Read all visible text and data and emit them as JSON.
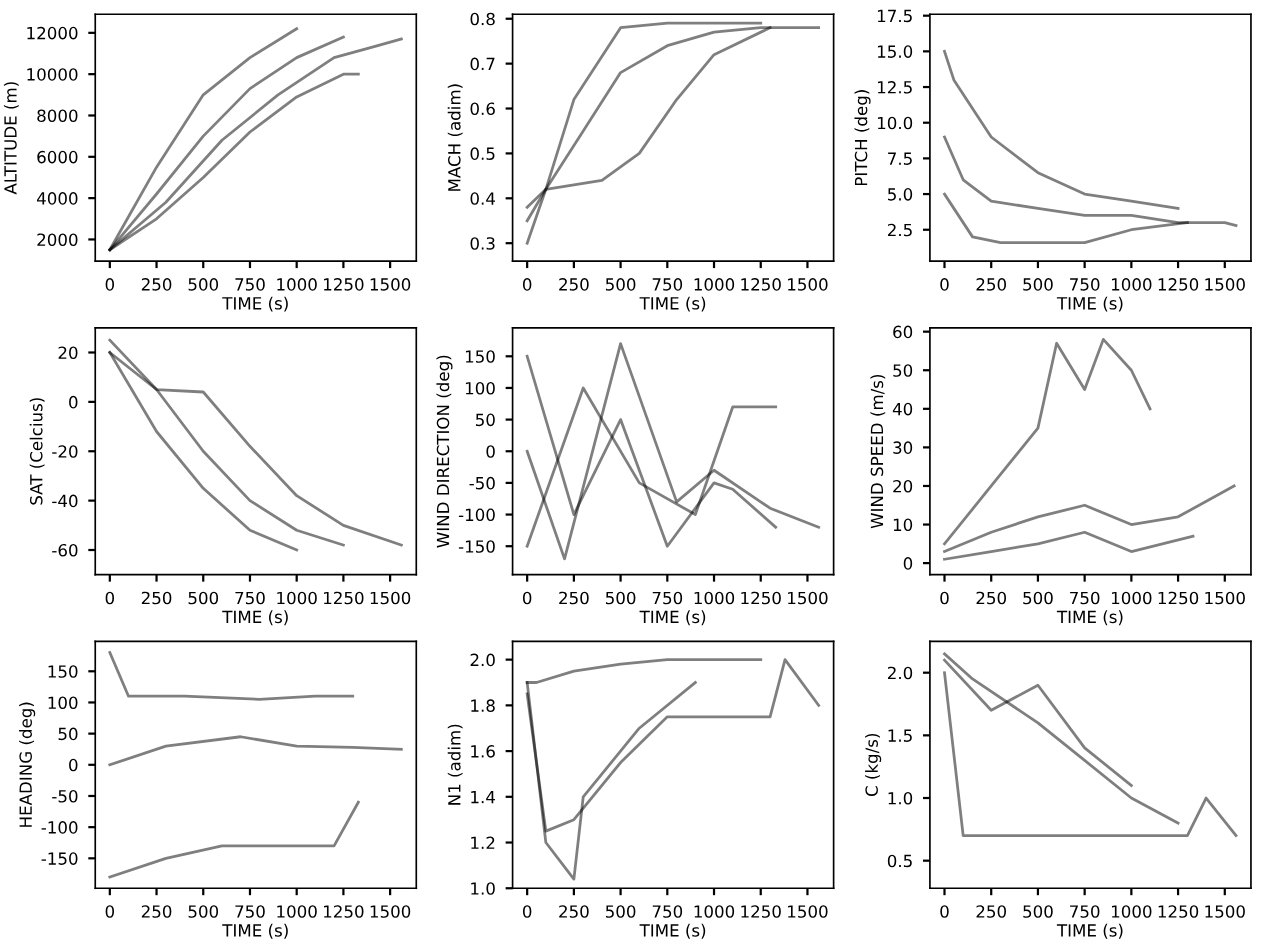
{
  "chart_data": [
    {
      "type": "line",
      "xlabel": "TIME (s)",
      "ylabel": "ALTITUDE (m)",
      "xlim": [
        -78,
        1640
      ],
      "xticks": [
        0,
        250,
        500,
        750,
        1000,
        1250,
        1500
      ],
      "ylim": [
        950,
        12900
      ],
      "yticks": [
        2000,
        4000,
        6000,
        8000,
        10000,
        12000
      ],
      "grid": false,
      "series": [
        {
          "color": "#000000",
          "x": [
            0,
            250,
            500,
            750,
            1000
          ],
          "values": [
            1500,
            5500,
            9000,
            10800,
            12200
          ]
        },
        {
          "color": "#000000",
          "x": [
            0,
            250,
            500,
            750,
            1000,
            1250
          ],
          "values": [
            1500,
            4200,
            7000,
            9300,
            10800,
            11800
          ]
        },
        {
          "color": "#000000",
          "x": [
            0,
            250,
            500,
            750,
            1000,
            1250,
            1330
          ],
          "values": [
            1500,
            3000,
            5000,
            7200,
            8900,
            10000,
            10000
          ]
        },
        {
          "color": "#000000",
          "x": [
            0,
            300,
            600,
            900,
            1200,
            1400,
            1560
          ],
          "values": [
            1500,
            3800,
            6800,
            9000,
            10800,
            11300,
            11700
          ]
        }
      ]
    },
    {
      "type": "line",
      "xlabel": "TIME (s)",
      "ylabel": "MACH (adim)",
      "xlim": [
        -78,
        1640
      ],
      "xticks": [
        0,
        250,
        500,
        750,
        1000,
        1250,
        1500
      ],
      "ylim": [
        0.26,
        0.81
      ],
      "yticks": [
        0.3,
        0.4,
        0.5,
        0.6,
        0.7,
        0.8
      ],
      "grid": false,
      "series": [
        {
          "color": "#000000",
          "x": [
            0,
            100,
            250,
            500,
            750,
            1000,
            1250
          ],
          "values": [
            0.3,
            0.42,
            0.62,
            0.78,
            0.79,
            0.79,
            0.79
          ]
        },
        {
          "color": "#000000",
          "x": [
            0,
            100,
            300,
            500,
            750,
            1000,
            1250,
            1560
          ],
          "values": [
            0.35,
            0.42,
            0.55,
            0.68,
            0.74,
            0.77,
            0.78,
            0.78
          ]
        },
        {
          "color": "#000000",
          "x": [
            0,
            100,
            250,
            400,
            600,
            800,
            1000,
            1300
          ],
          "values": [
            0.38,
            0.42,
            0.43,
            0.44,
            0.5,
            0.62,
            0.72,
            0.78
          ]
        }
      ]
    },
    {
      "type": "line",
      "xlabel": "TIME (s)",
      "ylabel": "PITCH (deg)",
      "xlim": [
        -78,
        1640
      ],
      "xticks": [
        0,
        250,
        500,
        750,
        1000,
        1250,
        1500
      ],
      "ylim": [
        0.3,
        17.6
      ],
      "yticks": [
        2.5,
        {
          "value": 5,
          "label": "5.0"
        },
        7.5,
        {
          "value": 10,
          "label": "10.0"
        },
        12.5,
        {
          "value": 15,
          "label": "15.0"
        },
        17.5
      ],
      "grid": false,
      "series": [
        {
          "color": "#000000",
          "x": [
            0,
            50,
            250,
            500,
            750,
            1000,
            1250
          ],
          "values": [
            15,
            13,
            9,
            6.5,
            5,
            4.5,
            4
          ]
        },
        {
          "color": "#000000",
          "x": [
            0,
            100,
            250,
            500,
            750,
            1000,
            1250,
            1500,
            1560
          ],
          "values": [
            9,
            6,
            4.5,
            4,
            3.5,
            3.5,
            3,
            3,
            2.8
          ]
        },
        {
          "color": "#000000",
          "x": [
            0,
            150,
            300,
            500,
            750,
            1000,
            1300
          ],
          "values": [
            5,
            2,
            1.6,
            1.6,
            1.6,
            2.5,
            3
          ]
        }
      ]
    },
    {
      "type": "line",
      "xlabel": "TIME (s)",
      "ylabel": "SAT (Celcius)",
      "xlim": [
        -78,
        1640
      ],
      "xticks": [
        0,
        250,
        500,
        750,
        1000,
        1250,
        1500
      ],
      "ylim": [
        -70,
        30
      ],
      "yticks": [
        -60,
        -40,
        -20,
        0,
        20
      ],
      "grid": false,
      "series": [
        {
          "color": "#000000",
          "x": [
            0,
            250,
            500,
            750,
            1000,
            1250
          ],
          "values": [
            25,
            5,
            -20,
            -40,
            -52,
            -58
          ]
        },
        {
          "color": "#000000",
          "x": [
            0,
            250,
            500,
            750,
            1000,
            1250,
            1560
          ],
          "values": [
            20,
            5,
            4,
            -18,
            -38,
            -50,
            -58
          ]
        },
        {
          "color": "#000000",
          "x": [
            0,
            250,
            500,
            750,
            1000
          ],
          "values": [
            20,
            -12,
            -35,
            -52,
            -60
          ]
        }
      ]
    },
    {
      "type": "line",
      "xlabel": "TIME (s)",
      "ylabel": "WIND DIRECTION (deg)",
      "xlim": [
        -78,
        1640
      ],
      "xticks": [
        0,
        250,
        500,
        750,
        1000,
        1250,
        1500
      ],
      "ylim": [
        -195,
        195
      ],
      "yticks": [
        -150,
        -100,
        -50,
        0,
        50,
        100,
        150
      ],
      "grid": false,
      "series": [
        {
          "color": "#000000",
          "x": [
            0,
            250,
            500,
            750,
            1000,
            1100,
            1330
          ],
          "values": [
            150,
            -100,
            50,
            -150,
            -50,
            -60,
            -120
          ]
        },
        {
          "color": "#000000",
          "x": [
            0,
            300,
            600,
            900,
            1100,
            1330
          ],
          "values": [
            -150,
            100,
            -50,
            -100,
            70,
            70
          ]
        },
        {
          "color": "#000000",
          "x": [
            0,
            200,
            500,
            800,
            1000,
            1300,
            1560
          ],
          "values": [
            0,
            -170,
            170,
            -80,
            -30,
            -90,
            -120
          ]
        }
      ]
    },
    {
      "type": "line",
      "xlabel": "TIME (s)",
      "ylabel": "WIND SPEED (m/s)",
      "xlim": [
        -78,
        1640
      ],
      "xticks": [
        0,
        250,
        500,
        750,
        1000,
        1250,
        1500
      ],
      "ylim": [
        -3,
        61
      ],
      "yticks": [
        0,
        10,
        20,
        30,
        40,
        50,
        60
      ],
      "grid": false,
      "series": [
        {
          "color": "#000000",
          "x": [
            0,
            250,
            500,
            600,
            750,
            850,
            1000,
            1100
          ],
          "values": [
            5,
            20,
            35,
            57,
            45,
            58,
            50,
            40
          ]
        },
        {
          "color": "#000000",
          "x": [
            0,
            250,
            500,
            750,
            1000,
            1250,
            1550
          ],
          "values": [
            3,
            8,
            12,
            15,
            10,
            12,
            20
          ]
        },
        {
          "color": "#000000",
          "x": [
            0,
            250,
            500,
            750,
            1000,
            1330
          ],
          "values": [
            1,
            3,
            5,
            8,
            3,
            7
          ]
        }
      ]
    },
    {
      "type": "line",
      "xlabel": "TIME (s)",
      "ylabel": "HEADING (deg)",
      "xlim": [
        -78,
        1640
      ],
      "xticks": [
        0,
        250,
        500,
        750,
        1000,
        1250,
        1500
      ],
      "ylim": [
        -198,
        198
      ],
      "yticks": [
        -150,
        -100,
        -50,
        0,
        50,
        100,
        150
      ],
      "grid": false,
      "series": [
        {
          "color": "#000000",
          "x": [
            0,
            100,
            400,
            800,
            1100,
            1300
          ],
          "values": [
            180,
            110,
            110,
            105,
            110,
            110
          ]
        },
        {
          "color": "#000000",
          "x": [
            0,
            300,
            600,
            900,
            1200,
            1330
          ],
          "values": [
            -180,
            -150,
            -130,
            -130,
            -130,
            -60
          ]
        },
        {
          "color": "#000000",
          "x": [
            0,
            300,
            700,
            1000,
            1300,
            1560
          ],
          "values": [
            0,
            30,
            45,
            30,
            28,
            25
          ]
        }
      ]
    },
    {
      "type": "line",
      "xlabel": "TIME (s)",
      "ylabel": "N1 (adim)",
      "xlim": [
        -78,
        1640
      ],
      "xticks": [
        0,
        250,
        500,
        750,
        1000,
        1250,
        1500
      ],
      "ylim": [
        1.0,
        2.08
      ],
      "yticks": [
        {
          "value": 1,
          "label": "1.0"
        },
        1.2,
        1.4,
        1.6,
        1.8,
        {
          "value": 2,
          "label": "2.0"
        }
      ],
      "grid": false,
      "series": [
        {
          "color": "#000000",
          "x": [
            0,
            50,
            250,
            500,
            750,
            1000,
            1250
          ],
          "values": [
            1.9,
            1.9,
            1.95,
            1.98,
            2.0,
            2.0,
            2.0
          ]
        },
        {
          "color": "#000000",
          "x": [
            0,
            100,
            250,
            500,
            750,
            1000,
            1300,
            1380,
            1560
          ],
          "values": [
            1.85,
            1.25,
            1.3,
            1.55,
            1.75,
            1.75,
            1.75,
            2.0,
            1.8
          ]
        },
        {
          "color": "#000000",
          "x": [
            0,
            100,
            250,
            300,
            600,
            900
          ],
          "values": [
            1.9,
            1.2,
            1.04,
            1.4,
            1.7,
            1.9
          ]
        }
      ]
    },
    {
      "type": "line",
      "xlabel": "TIME (s)",
      "ylabel": "C (kg/s)",
      "xlim": [
        -78,
        1640
      ],
      "xticks": [
        0,
        250,
        500,
        750,
        1000,
        1250,
        1500
      ],
      "ylim": [
        0.28,
        2.25
      ],
      "yticks": [
        0.5,
        {
          "value": 1,
          "label": "1.0"
        },
        1.5,
        {
          "value": 2,
          "label": "2.0"
        }
      ],
      "grid": false,
      "series": [
        {
          "color": "#000000",
          "x": [
            0,
            150,
            500,
            750,
            1000,
            1250
          ],
          "values": [
            2.15,
            1.95,
            1.6,
            1.3,
            1.0,
            0.8
          ]
        },
        {
          "color": "#000000",
          "x": [
            0,
            100,
            400,
            700,
            1000,
            1300,
            1400,
            1560
          ],
          "values": [
            2.0,
            0.7,
            0.7,
            0.7,
            0.7,
            0.7,
            1.0,
            0.7
          ]
        },
        {
          "color": "#000000",
          "x": [
            0,
            250,
            500,
            750,
            1000
          ],
          "values": [
            2.1,
            1.7,
            1.9,
            1.4,
            1.1
          ]
        }
      ]
    }
  ]
}
